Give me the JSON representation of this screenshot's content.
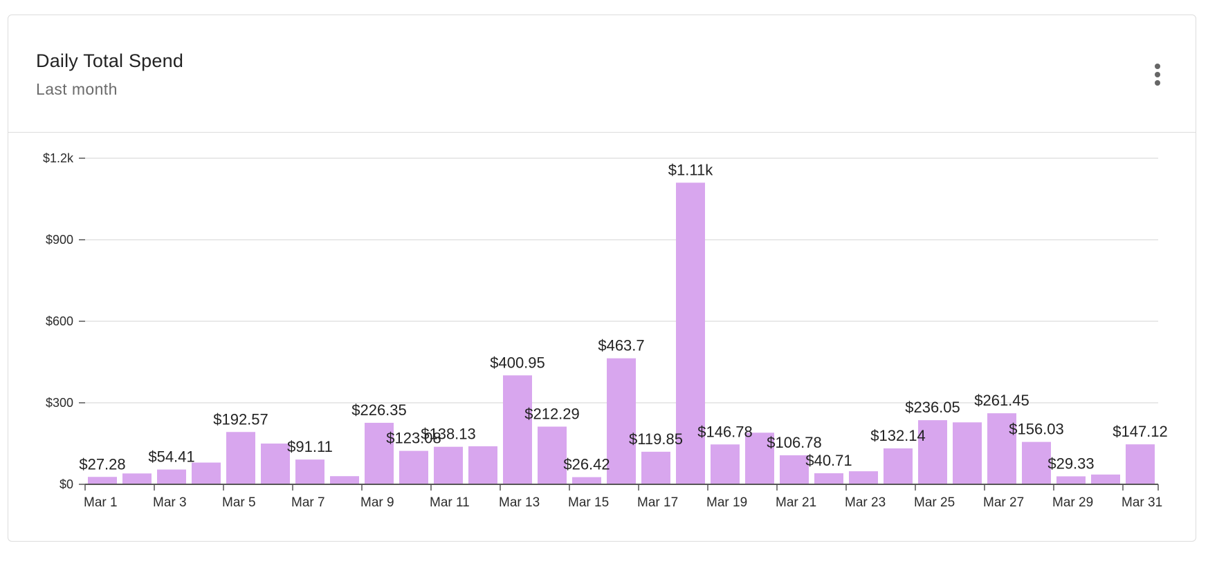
{
  "card": {
    "title": "Daily Total Spend",
    "subtitle": "Last month",
    "menu_icon": "more-vertical-icon"
  },
  "colors": {
    "bar": "#d8a6ee",
    "grid": "#e2e2e2",
    "axis": "#555555"
  },
  "chart_data": {
    "type": "bar",
    "title": "Daily Total Spend",
    "subtitle": "Last month",
    "xlabel": "",
    "ylabel": "",
    "ylim": [
      0,
      1200
    ],
    "y_ticks": [
      0,
      300,
      600,
      900,
      1200
    ],
    "y_tick_labels": [
      "$0",
      "$300",
      "$600",
      "$900",
      "$1.2k"
    ],
    "grid": true,
    "categories": [
      "Mar 1",
      "Mar 2",
      "Mar 3",
      "Mar 4",
      "Mar 5",
      "Mar 6",
      "Mar 7",
      "Mar 8",
      "Mar 9",
      "Mar 10",
      "Mar 11",
      "Mar 12",
      "Mar 13",
      "Mar 14",
      "Mar 15",
      "Mar 16",
      "Mar 17",
      "Mar 18",
      "Mar 19",
      "Mar 20",
      "Mar 21",
      "Mar 22",
      "Mar 23",
      "Mar 24",
      "Mar 25",
      "Mar 26",
      "Mar 27",
      "Mar 28",
      "Mar 29",
      "Mar 30",
      "Mar 31"
    ],
    "x_tick_labels": [
      "Mar 1",
      "Mar 3",
      "Mar 5",
      "Mar 7",
      "Mar 9",
      "Mar 11",
      "Mar 13",
      "Mar 15",
      "Mar 17",
      "Mar 19",
      "Mar 21",
      "Mar 23",
      "Mar 25",
      "Mar 27",
      "Mar 29",
      "Mar 31"
    ],
    "values": [
      27.28,
      40,
      54.41,
      80,
      192.57,
      150,
      91.11,
      30,
      226.35,
      123.08,
      138.13,
      140,
      400.95,
      212.29,
      26.42,
      463.7,
      119.85,
      1110,
      146.78,
      190,
      106.78,
      40.71,
      48,
      132.14,
      236.05,
      228,
      261.45,
      156.03,
      29.33,
      36,
      147.12
    ],
    "data_labels": [
      "$27.28",
      "",
      "$54.41",
      "",
      "$192.57",
      "",
      "$91.11",
      "",
      "$226.35",
      "$123.08",
      "$138.13",
      "",
      "$400.95",
      "$212.29",
      "$26.42",
      "$463.7",
      "$119.85",
      "$1.11k",
      "$146.78",
      "",
      "$106.78",
      "$40.71",
      "",
      "$132.14",
      "$236.05",
      "",
      "$261.45",
      "$156.03",
      "$29.33",
      "",
      "$147.12"
    ]
  }
}
